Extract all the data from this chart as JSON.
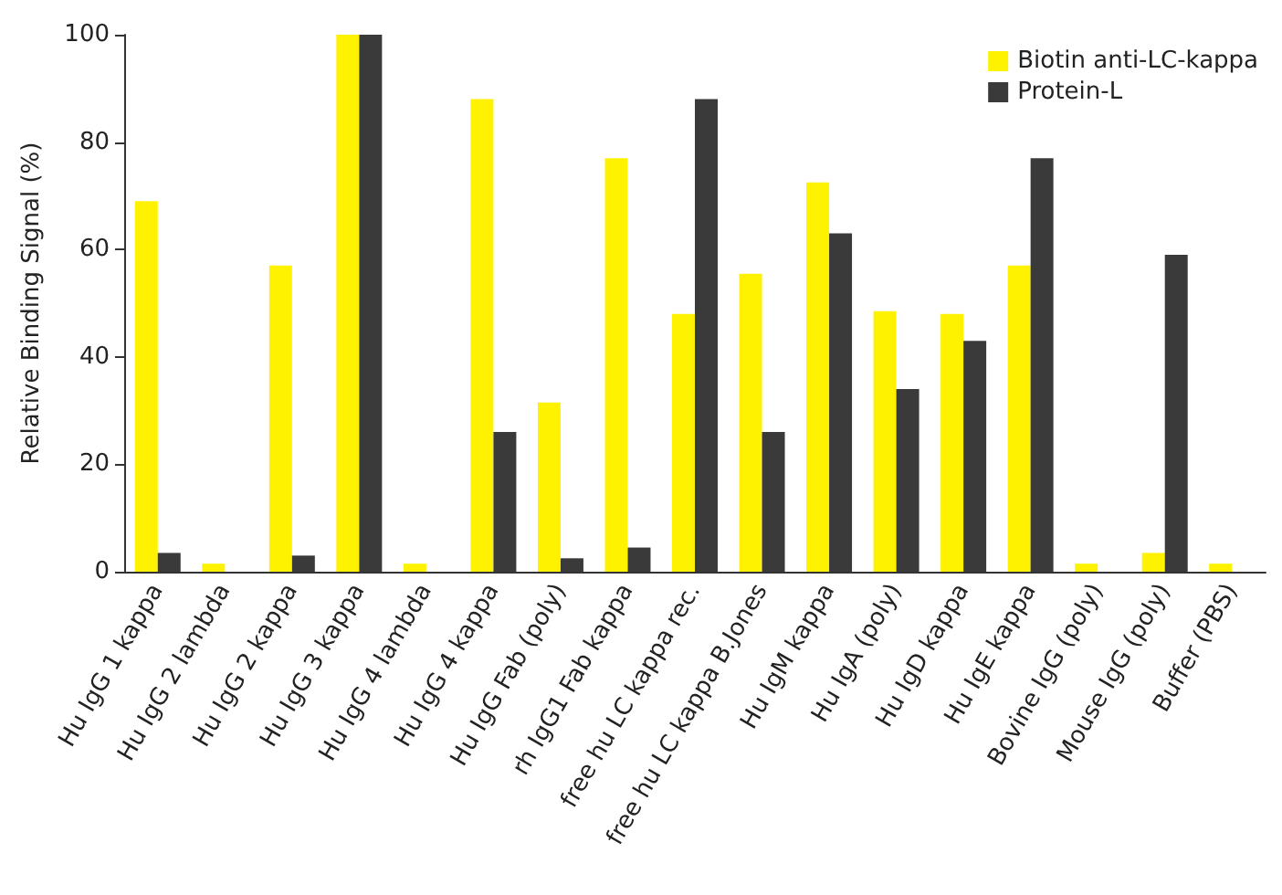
{
  "chart_data": {
    "type": "bar",
    "ylabel": "Relative Binding Signal (%)",
    "categories": [
      "Hu IgG 1 kappa",
      "Hu IgG 2 lambda",
      "Hu IgG 2 kappa",
      "Hu IgG 3 kappa",
      "Hu IgG 4 lambda",
      "Hu IgG 4 kappa",
      "Hu IgG Fab (poly)",
      "rh IgG1 Fab kappa",
      "free hu LC kappa rec.",
      "free hu LC kappa B.Jones",
      "Hu IgM kappa",
      "Hu IgA (poly)",
      "Hu IgD kappa",
      "Hu IgE kappa",
      "Bovine IgG (poly)",
      "Mouse IgG (poly)",
      "Buffer (PBS)"
    ],
    "series": [
      {
        "name": "Biotin anti-LC-kappa",
        "color": "#fff200",
        "values": [
          69,
          1.5,
          57,
          100,
          1.5,
          88,
          31.5,
          77,
          48,
          55.5,
          72.5,
          48.5,
          48,
          57,
          1.5,
          3.5,
          1.5
        ]
      },
      {
        "name": "Protein-L",
        "color": "#3a3a3a",
        "values": [
          3.5,
          0,
          3,
          100,
          0,
          26,
          2.5,
          4.5,
          88,
          26,
          63,
          34,
          43,
          77,
          0,
          59,
          0
        ]
      }
    ],
    "ylim": [
      0,
      100
    ],
    "yticks": [
      0,
      20,
      40,
      60,
      80,
      100
    ],
    "grid": false,
    "legend": "top right"
  }
}
